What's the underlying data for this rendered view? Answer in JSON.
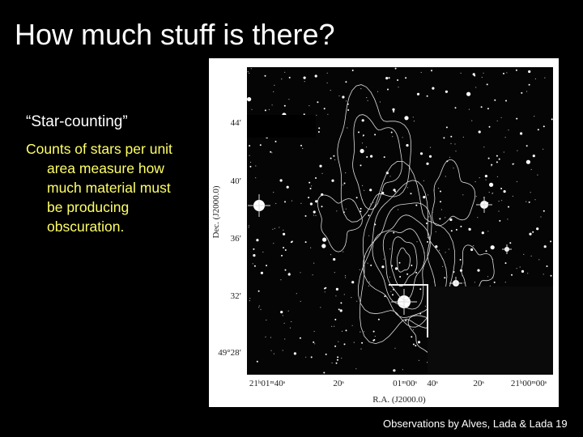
{
  "title": "How much stuff is there?",
  "subtitle": "“Star-counting”",
  "body": "Counts of stars per unit area measure how much material must be producing obscuration.",
  "figure": {
    "y_axis_label": "Dec. (J2000.0)",
    "x_axis_label": "R.A. (J2000.0)",
    "y_ticks": [
      "44ʹ",
      "40ʹ",
      "36ʹ",
      "32ʹ",
      "49°28ʹ"
    ],
    "x_ticks": [
      "21ʰ01ᵐ40ˢ",
      "20ˢ",
      "01ᵐ00ˢ",
      "40ˢ",
      "20ˢ",
      "21ʰ00ᵐ00ˢ"
    ]
  },
  "footer": "Observations by Alves, Lada & Lada 19"
}
